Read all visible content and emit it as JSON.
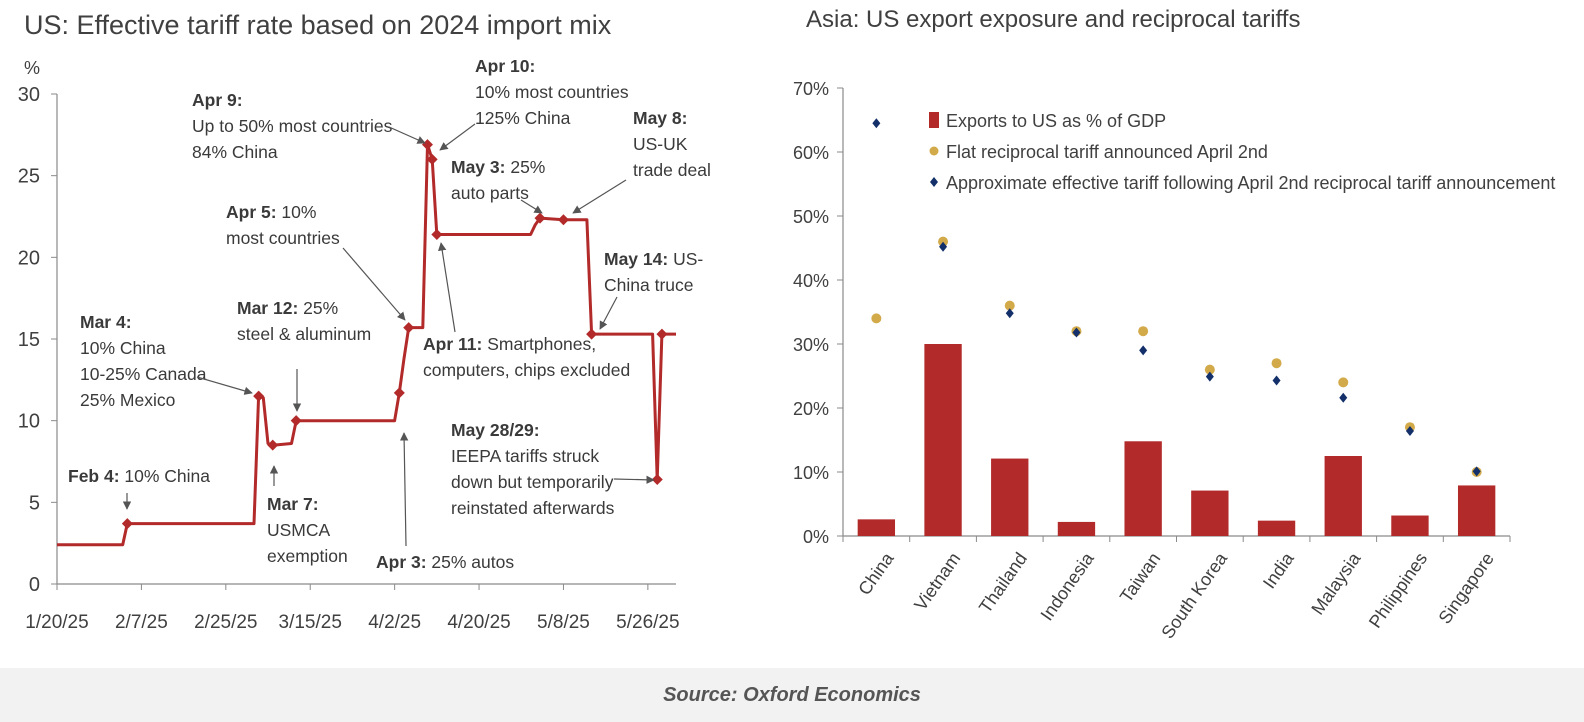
{
  "colors": {
    "line": "#b22a2a",
    "bar": "#b22a2a",
    "dot_flat": "#d3aa4a",
    "dot_effective": "#13306a",
    "axis": "#8a8a8a",
    "text": "#404040"
  },
  "source": "Source: Oxford Economics",
  "chart_data": [
    {
      "type": "line",
      "title": "US: Effective tariff rate based on 2024 import mix",
      "ylabel": "%",
      "ylim": [
        0,
        30
      ],
      "yticks": [
        "0",
        "5",
        "10",
        "15",
        "20",
        "25",
        "30"
      ],
      "xlim": [
        "2025-01-20",
        "2025-06-01"
      ],
      "xticks": [
        {
          "date": "2025-01-20",
          "label": "1/20/25"
        },
        {
          "date": "2025-02-07",
          "label": "2/7/25"
        },
        {
          "date": "2025-02-25",
          "label": "2/25/25"
        },
        {
          "date": "2025-03-15",
          "label": "3/15/25"
        },
        {
          "date": "2025-04-02",
          "label": "4/2/25"
        },
        {
          "date": "2025-04-20",
          "label": "4/20/25"
        },
        {
          "date": "2025-05-08",
          "label": "5/8/25"
        },
        {
          "date": "2025-05-26",
          "label": "5/26/25"
        }
      ],
      "series": [
        {
          "points": [
            [
              "2025-01-20",
              2.4
            ],
            [
              "2025-02-03",
              2.4
            ],
            [
              "2025-02-04",
              3.7
            ],
            [
              "2025-03-03",
              3.7
            ],
            [
              "2025-03-04",
              11.5
            ],
            [
              "2025-03-05",
              11.4
            ],
            [
              "2025-03-06",
              8.6
            ],
            [
              "2025-03-07",
              8.5
            ],
            [
              "2025-03-11",
              8.6
            ],
            [
              "2025-03-12",
              10.0
            ],
            [
              "2025-04-02",
              10.0
            ],
            [
              "2025-04-03",
              11.7
            ],
            [
              "2025-04-04",
              13.8
            ],
            [
              "2025-04-05",
              15.7
            ],
            [
              "2025-04-08",
              15.7
            ],
            [
              "2025-04-09",
              26.9
            ],
            [
              "2025-04-10",
              26.0
            ],
            [
              "2025-04-11",
              21.4
            ],
            [
              "2025-05-01",
              21.4
            ],
            [
              "2025-05-02",
              22.0
            ],
            [
              "2025-05-03",
              22.4
            ],
            [
              "2025-05-08",
              22.3
            ],
            [
              "2025-05-13",
              22.3
            ],
            [
              "2025-05-14",
              15.3
            ],
            [
              "2025-05-27",
              15.3
            ],
            [
              "2025-05-28",
              6.4
            ],
            [
              "2025-05-29",
              15.3
            ],
            [
              "2025-06-01",
              15.3
            ]
          ],
          "markers": [
            [
              "2025-02-04",
              3.7
            ],
            [
              "2025-03-04",
              11.5
            ],
            [
              "2025-03-07",
              8.5
            ],
            [
              "2025-03-12",
              10.0
            ],
            [
              "2025-04-03",
              11.7
            ],
            [
              "2025-04-05",
              15.7
            ],
            [
              "2025-04-09",
              26.9
            ],
            [
              "2025-04-10",
              26.0
            ],
            [
              "2025-04-11",
              21.4
            ],
            [
              "2025-05-03",
              22.4
            ],
            [
              "2025-05-08",
              22.3
            ],
            [
              "2025-05-14",
              15.3
            ],
            [
              "2025-05-28",
              6.4
            ],
            [
              "2025-05-29",
              15.3
            ]
          ]
        }
      ],
      "annotations": [
        {
          "key": "feb4",
          "bold": "Feb 4:",
          "text": [
            "10% China"
          ],
          "date": "2025-02-04",
          "value": 3.7
        },
        {
          "key": "mar4",
          "bold": "Mar 4:",
          "text": [
            "10% China",
            "10-25% Canada",
            "25% Mexico"
          ],
          "date": "2025-03-04",
          "value": 11.5
        },
        {
          "key": "mar7",
          "bold": "Mar 7:",
          "text": [
            "USMCA",
            "exemption"
          ],
          "date": "2025-03-07",
          "value": 8.5
        },
        {
          "key": "mar12",
          "bold": "Mar 12:",
          "text": [
            "25%",
            "steel & aluminum"
          ],
          "date": "2025-03-12",
          "value": 10.0
        },
        {
          "key": "apr3",
          "bold": "Apr 3:",
          "text": [
            "25% autos"
          ],
          "date": "2025-04-03",
          "value": 11.7
        },
        {
          "key": "apr5",
          "bold": "Apr 5:",
          "text": [
            "10%",
            "most countries"
          ],
          "date": "2025-04-05",
          "value": 15.7
        },
        {
          "key": "apr9",
          "bold": "Apr 9:",
          "text": [
            "Up to 50% most countries",
            "84% China"
          ],
          "date": "2025-04-09",
          "value": 26.9
        },
        {
          "key": "apr10",
          "bold": "Apr 10:",
          "text": [
            "10% most countries",
            "125% China"
          ],
          "date": "2025-04-10",
          "value": 26.0
        },
        {
          "key": "apr11",
          "bold": "Apr 11:",
          "text": [
            "Smartphones,",
            "computers, chips excluded"
          ],
          "date": "2025-04-11",
          "value": 21.4
        },
        {
          "key": "may3",
          "bold": "May 3:",
          "text": [
            "25%",
            "auto parts"
          ],
          "date": "2025-05-03",
          "value": 22.4
        },
        {
          "key": "may8",
          "bold": "May 8:",
          "text": [
            "US-UK",
            "trade deal"
          ],
          "date": "2025-05-08",
          "value": 22.3
        },
        {
          "key": "may14",
          "bold": "May 14:",
          "text": [
            "US-",
            "China truce"
          ],
          "date": "2025-05-14",
          "value": 15.3
        },
        {
          "key": "may28",
          "bold": "May 28/29:",
          "text": [
            "IEEPA tariffs struck",
            "down but temporarily",
            "reinstated afterwards"
          ],
          "date": "2025-05-28",
          "value": 6.4
        }
      ]
    },
    {
      "type": "bar",
      "title": "Asia: US export exposure and reciprocal tariffs",
      "ylim": [
        0,
        70
      ],
      "yticks": [
        "0%",
        "10%",
        "20%",
        "30%",
        "40%",
        "50%",
        "60%",
        "70%"
      ],
      "categories": [
        "China",
        "Vietnam",
        "Thailand",
        "Indonesia",
        "Taiwan",
        "South Korea",
        "India",
        "Malaysia",
        "Philippines",
        "Singapore"
      ],
      "series": [
        {
          "name": "Exports to US as % of GDP",
          "kind": "bar",
          "values": [
            2.6,
            30.0,
            12.1,
            2.2,
            14.8,
            7.1,
            2.4,
            12.5,
            3.2,
            7.9
          ]
        },
        {
          "name": "Flat reciprocal tariff announced April 2nd",
          "kind": "dot",
          "values": [
            34.0,
            46.0,
            36.0,
            32.0,
            32.0,
            26.0,
            27.0,
            24.0,
            17.0,
            10.0
          ]
        },
        {
          "name": "Approximate effective tariff following April 2nd reciprocal tariff announcement",
          "kind": "diamond",
          "values": [
            64.5,
            45.2,
            34.8,
            31.8,
            29.0,
            24.9,
            24.3,
            21.6,
            16.4,
            10.1
          ]
        }
      ],
      "legend": "top"
    }
  ]
}
